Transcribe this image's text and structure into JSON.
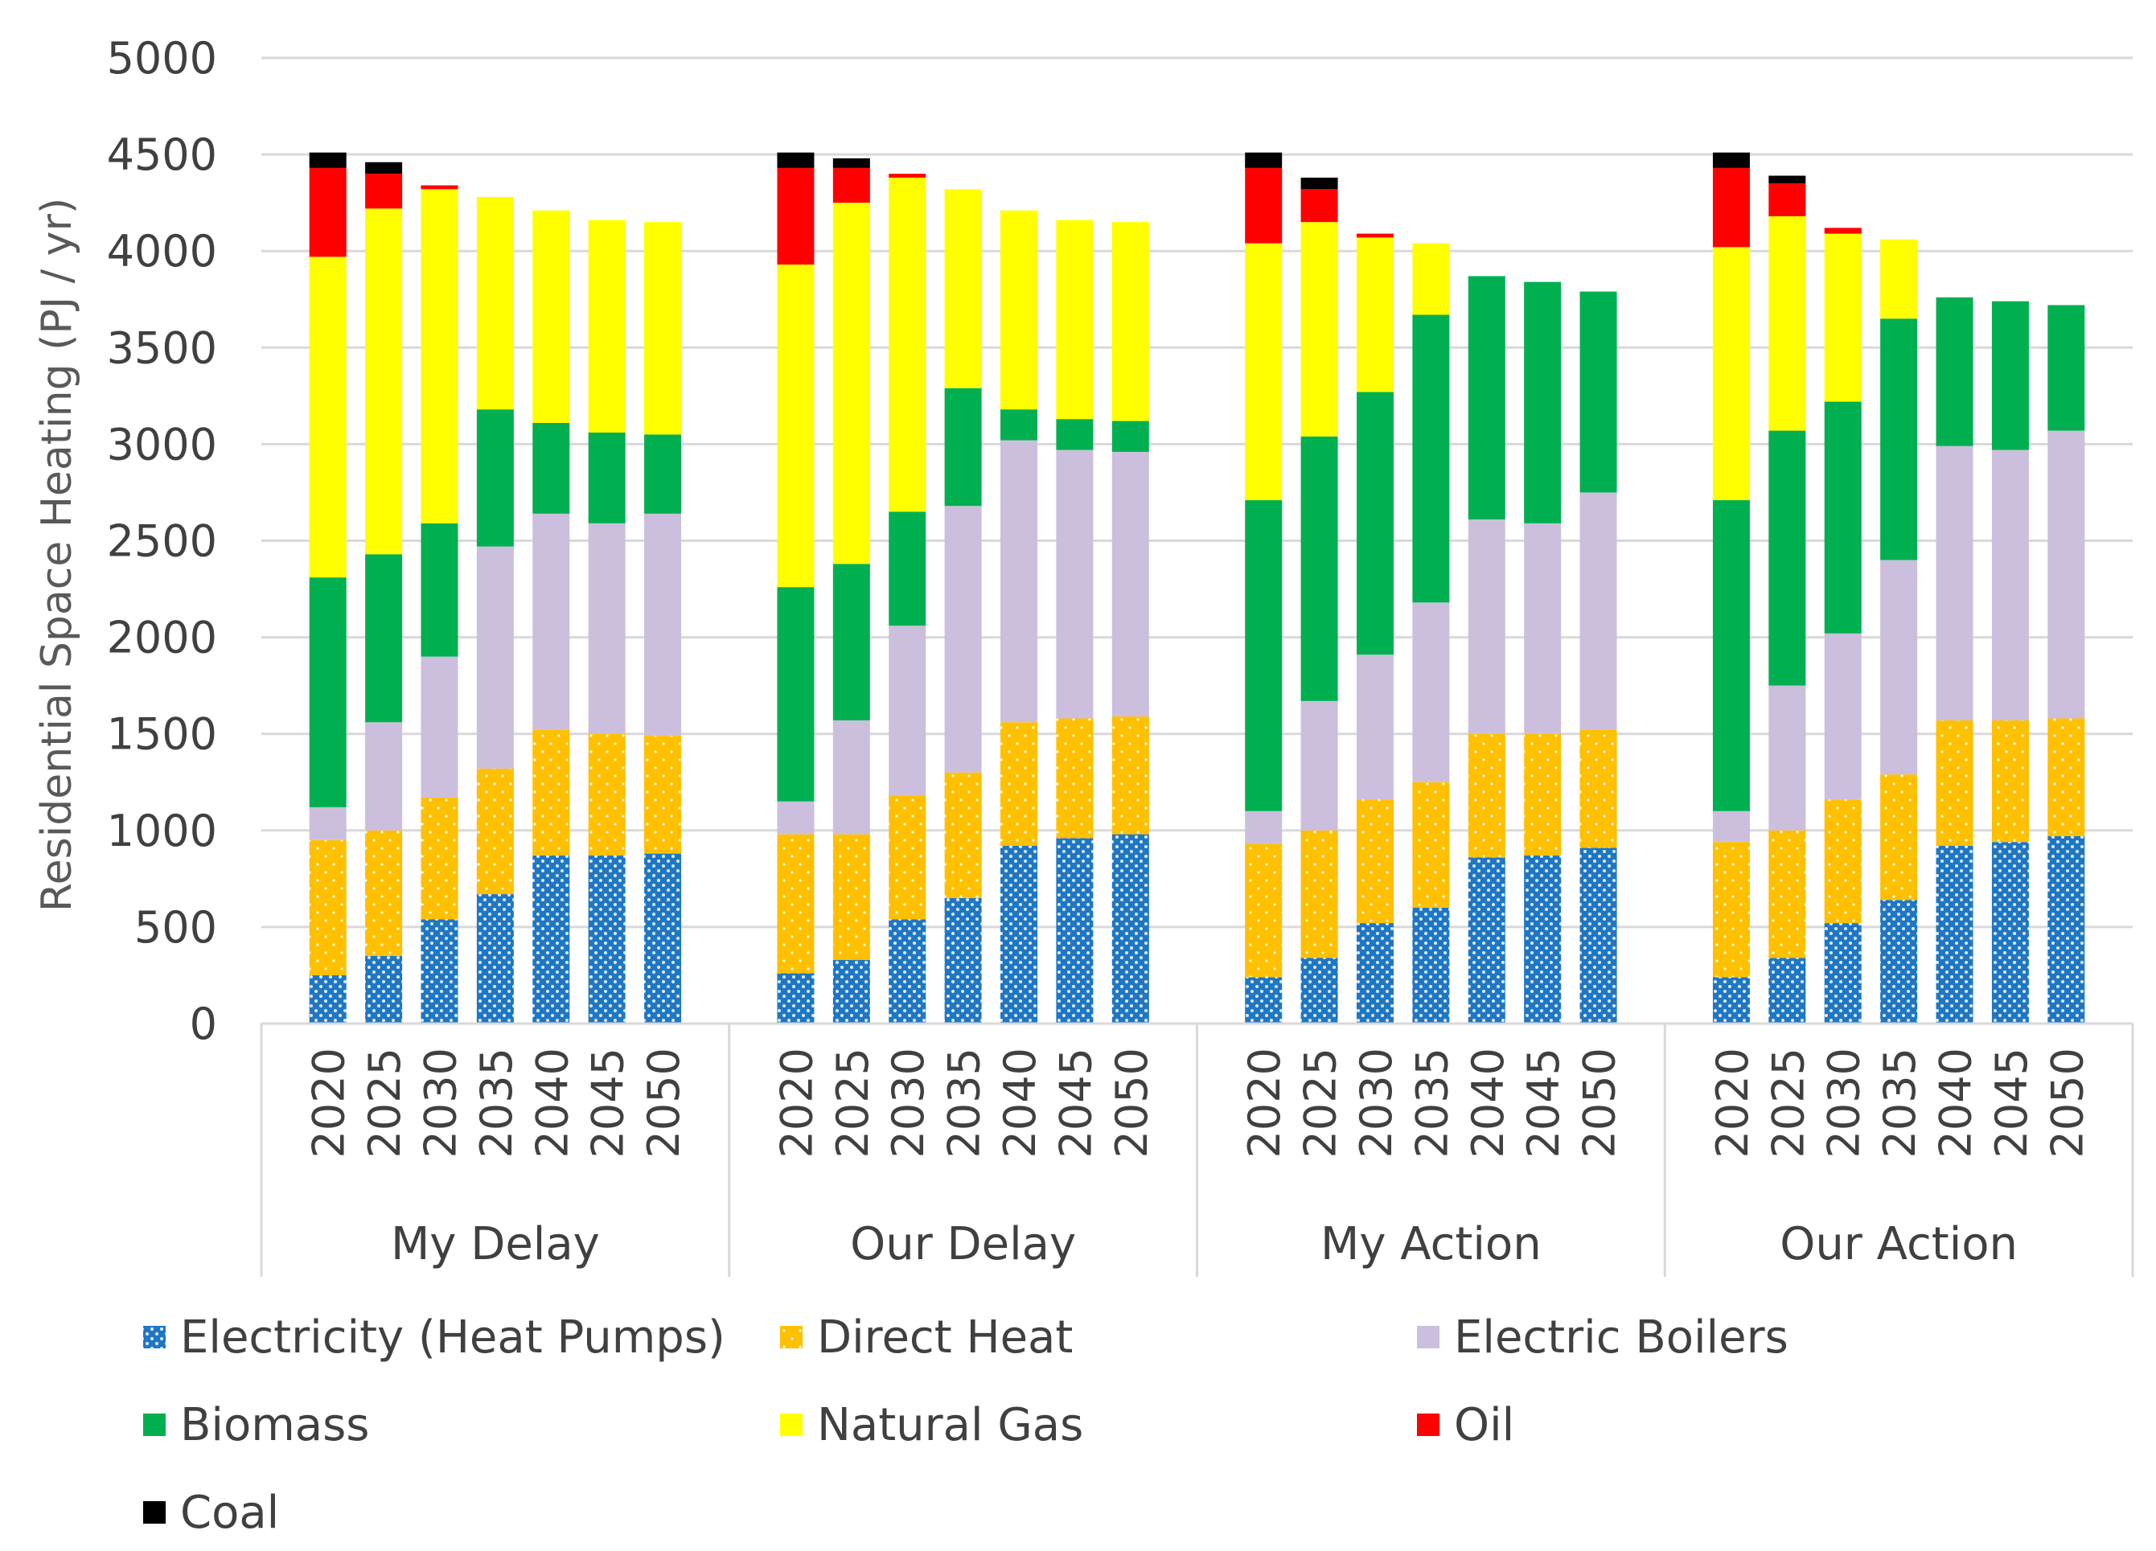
{
  "chart_data": {
    "type": "bar",
    "stacked": true,
    "title": "",
    "xlabel": "",
    "ylabel": "Residential Space Heating (PJ / yr)",
    "ylim": [
      0,
      5000
    ],
    "yticks": [
      0,
      500,
      1000,
      1500,
      2000,
      2500,
      3000,
      3500,
      4000,
      4500,
      5000
    ],
    "grid": true,
    "legend_position": "bottom",
    "years": [
      "2020",
      "2025",
      "2030",
      "2035",
      "2040",
      "2045",
      "2050"
    ],
    "groups": [
      "My Delay",
      "Our Delay",
      "My Action",
      "Our Action"
    ],
    "series": [
      {
        "name": "Electricity (Heat Pumps)",
        "color": "#1f77c4",
        "pattern": "dots",
        "values": [
          [
            250,
            350,
            540,
            670,
            870,
            870,
            880
          ],
          [
            260,
            330,
            540,
            650,
            920,
            960,
            980
          ],
          [
            240,
            340,
            520,
            600,
            860,
            870,
            910
          ],
          [
            240,
            340,
            520,
            640,
            920,
            940,
            970
          ]
        ]
      },
      {
        "name": "Direct Heat",
        "color": "#ffc000",
        "pattern": "dots",
        "values": [
          [
            700,
            650,
            630,
            650,
            650,
            630,
            610
          ],
          [
            720,
            650,
            640,
            650,
            640,
            620,
            610
          ],
          [
            690,
            660,
            640,
            650,
            640,
            630,
            610
          ],
          [
            700,
            660,
            640,
            650,
            650,
            630,
            610
          ]
        ]
      },
      {
        "name": "Electric Boilers",
        "color": "#cbbfdd",
        "values": [
          [
            170,
            560,
            730,
            1150,
            1120,
            1090,
            1150
          ],
          [
            170,
            590,
            880,
            1380,
            1460,
            1390,
            1370
          ],
          [
            170,
            670,
            750,
            930,
            1110,
            1090,
            1230
          ],
          [
            160,
            750,
            860,
            1110,
            1420,
            1400,
            1490
          ]
        ]
      },
      {
        "name": "Biomass",
        "color": "#00b050",
        "values": [
          [
            1190,
            870,
            690,
            710,
            470,
            470,
            410
          ],
          [
            1110,
            810,
            590,
            610,
            160,
            160,
            160
          ],
          [
            1610,
            1370,
            1360,
            1490,
            1260,
            1250,
            1040
          ],
          [
            1610,
            1320,
            1200,
            1250,
            770,
            770,
            650
          ]
        ]
      },
      {
        "name": "Natural Gas",
        "color": "#ffff00",
        "values": [
          [
            1660,
            1790,
            1730,
            1100,
            1100,
            1100,
            1100
          ],
          [
            1670,
            1870,
            1730,
            1030,
            1030,
            1030,
            1030
          ],
          [
            1330,
            1110,
            800,
            370,
            0,
            0,
            0
          ],
          [
            1310,
            1110,
            870,
            410,
            0,
            0,
            0
          ]
        ]
      },
      {
        "name": "Oil",
        "color": "#ff0000",
        "values": [
          [
            460,
            180,
            20,
            0,
            0,
            0,
            0
          ],
          [
            500,
            180,
            20,
            0,
            0,
            0,
            0
          ],
          [
            390,
            170,
            20,
            0,
            0,
            0,
            0
          ],
          [
            410,
            170,
            30,
            0,
            0,
            0,
            0
          ]
        ]
      },
      {
        "name": "Coal",
        "color": "#000000",
        "values": [
          [
            80,
            60,
            0,
            0,
            0,
            0,
            0
          ],
          [
            80,
            50,
            0,
            0,
            0,
            0,
            0
          ],
          [
            80,
            60,
            0,
            0,
            0,
            0,
            0
          ],
          [
            80,
            40,
            0,
            0,
            0,
            0,
            0
          ]
        ]
      }
    ]
  }
}
